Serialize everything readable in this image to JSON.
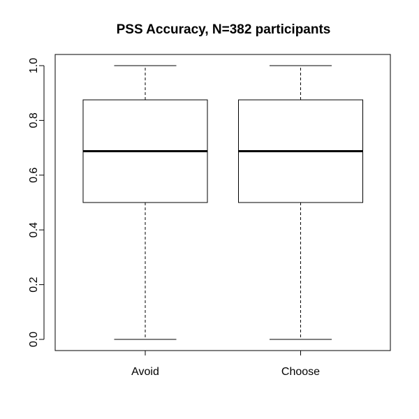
{
  "chart_data": {
    "type": "boxplot",
    "title": "PSS Accuracy, N=382 participants",
    "xlabel": "",
    "ylabel": "",
    "categories": [
      "Avoid",
      "Choose"
    ],
    "boxes": [
      {
        "category": "Avoid",
        "min": 0.0,
        "q1": 0.5,
        "median": 0.6875,
        "q3": 0.875,
        "max": 1.0
      },
      {
        "category": "Choose",
        "min": 0.0,
        "q1": 0.5,
        "median": 0.6875,
        "q3": 0.875,
        "max": 1.0
      }
    ],
    "ylim": [
      -0.04,
      1.04
    ],
    "yticks": [
      0.0,
      0.2,
      0.4,
      0.6,
      0.8,
      1.0
    ],
    "ytick_labels": [
      "0.0",
      "0.2",
      "0.4",
      "0.6",
      "0.8",
      "1.0"
    ],
    "grid": false,
    "legend": "none"
  }
}
